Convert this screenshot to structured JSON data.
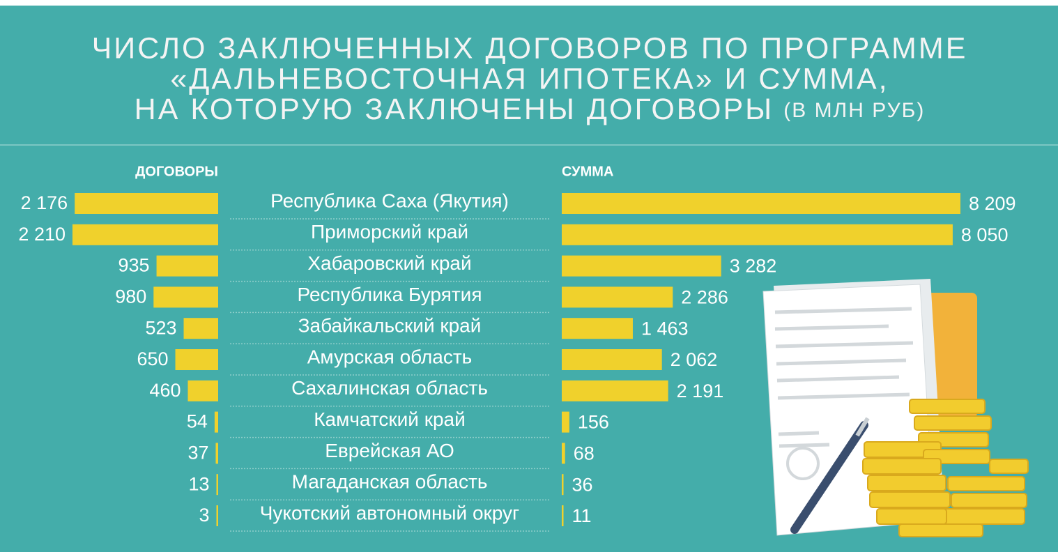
{
  "chart_data": {
    "type": "mirrored-bar",
    "title": [
      "ЧИСЛО ЗАКЛЮЧЕННЫХ ДОГОВОРОВ ПО ПРОГРАММЕ",
      "«ДАЛЬНЕВОСТОЧНАЯ ИПОТЕКА» И СУММА,",
      "НА КОТОРУЮ ЗАКЛЮЧЕНЫ ДОГОВОРЫ"
    ],
    "subtitle": "(В МЛН РУБ)",
    "categories": [
      "Республика Саха (Якутия)",
      "Приморский край",
      "Хабаровский край",
      "Республика Бурятия",
      "Забайкальский край",
      "Амурская область",
      "Сахалинская область",
      "Камчатский край",
      "Еврейская АО",
      "Магаданская область",
      "Чукотский автономный округ"
    ],
    "series": [
      {
        "name": "ДОГОВОРЫ",
        "color": "#f0d12c",
        "values": [
          2176,
          2210,
          935,
          980,
          523,
          650,
          460,
          54,
          37,
          13,
          3
        ],
        "value_labels": [
          "2 176",
          "2 210",
          "935",
          "980",
          "523",
          "650",
          "460",
          "54",
          "37",
          "13",
          "3"
        ]
      },
      {
        "name": "СУММА",
        "color": "#f0d12c",
        "values": [
          8209,
          8050,
          3282,
          2286,
          1463,
          2062,
          2191,
          156,
          68,
          36,
          11
        ],
        "value_labels": [
          "8 209",
          "8 050",
          "3 282",
          "2 286",
          "1 463",
          "2 062",
          "2 191",
          "156",
          "68",
          "36",
          "11"
        ]
      }
    ]
  }
}
